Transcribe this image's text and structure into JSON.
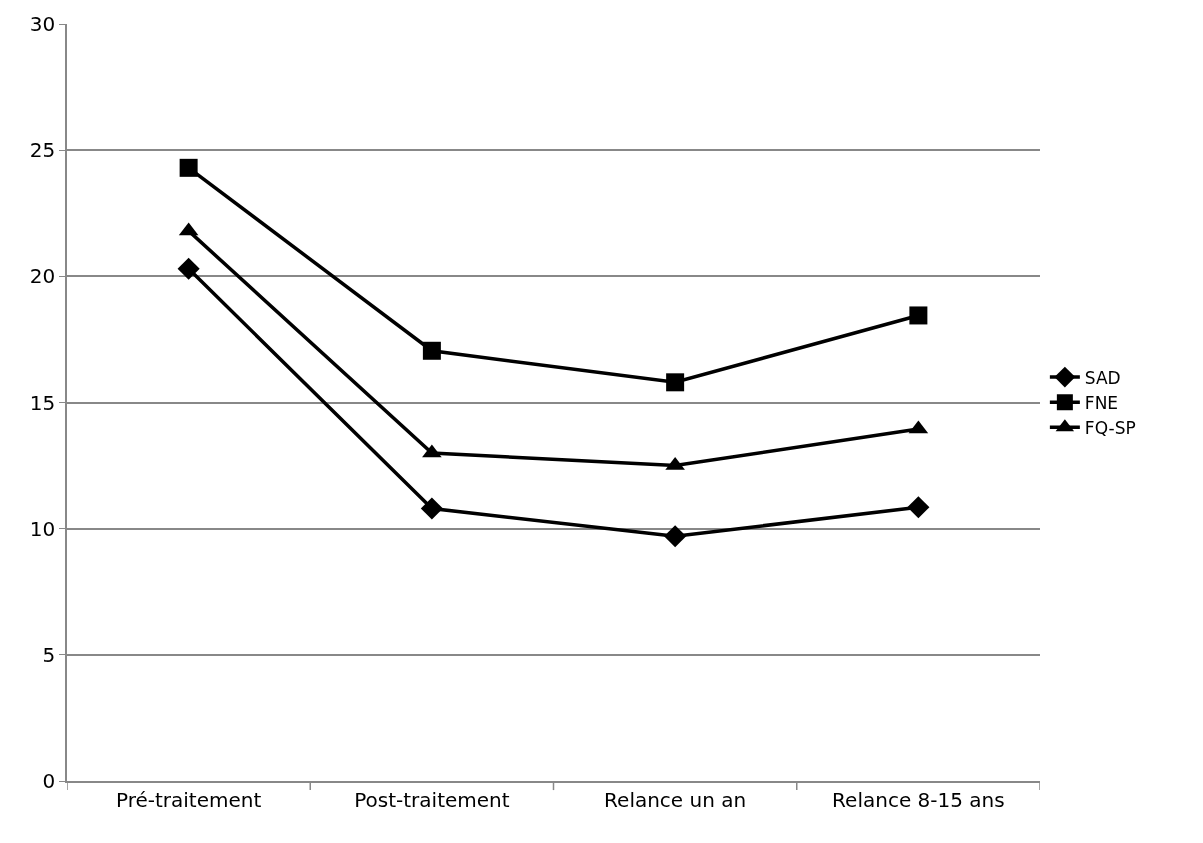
{
  "chart_data": {
    "type": "line",
    "categories": [
      "Pré-traitement",
      "Post-traitement",
      "Relance un an",
      "Relance 8-15 ans"
    ],
    "series": [
      {
        "name": "SAD",
        "color": "#000000",
        "marker": "diamond",
        "values": [
          20.3,
          10.8,
          9.7,
          10.85
        ]
      },
      {
        "name": "FNE",
        "color": "#000000",
        "marker": "square",
        "values": [
          24.3,
          17.05,
          15.8,
          18.45
        ]
      },
      {
        "name": "FQ-SP",
        "color": "#000000",
        "marker": "triangle",
        "values": [
          21.8,
          13.0,
          12.5,
          13.95
        ]
      }
    ],
    "ylim": [
      0,
      30
    ],
    "yticks": [
      0,
      5,
      10,
      15,
      20,
      25,
      30
    ],
    "grid": "y",
    "legend": "right",
    "line_style": "solid"
  }
}
